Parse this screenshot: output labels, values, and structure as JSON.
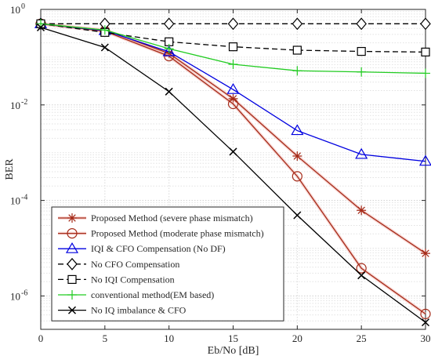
{
  "chart_data": {
    "type": "line",
    "title": "",
    "xlabel": "Eb/No [dB]",
    "ylabel": "BER",
    "x": [
      0,
      5,
      10,
      15,
      20,
      25,
      30
    ],
    "xlim": [
      0,
      30
    ],
    "ylim": [
      2e-07,
      1
    ],
    "yscale": "log",
    "x_ticks": [
      0,
      5,
      10,
      15,
      20,
      25,
      30
    ],
    "x_tick_labels": [
      "0",
      "5",
      "10",
      "15",
      "20",
      "25",
      "30"
    ],
    "y_ticks": [
      1e-06,
      0.0001,
      0.01,
      1
    ],
    "y_tick_labels": [
      {
        "base": "10",
        "exp": "-6"
      },
      {
        "base": "10",
        "exp": "-4"
      },
      {
        "base": "10",
        "exp": "-2"
      },
      {
        "base": "10",
        "exp": "0"
      }
    ],
    "grid": true,
    "legend_position": "bottom-left",
    "series": [
      {
        "name": "Proposed Method (severe phase mismatch)",
        "color": "#a52a18",
        "marker": "asterisk",
        "dash": "solid",
        "halo": true,
        "values": [
          0.5,
          0.37,
          0.12,
          0.0135,
          0.00085,
          6.2e-05,
          7.8e-06
        ]
      },
      {
        "name": "Proposed Method (moderate phase mismatch)",
        "color": "#a52a18",
        "marker": "circle",
        "dash": "solid",
        "halo": true,
        "values": [
          0.5,
          0.35,
          0.105,
          0.0105,
          0.00032,
          3.8e-06,
          4.2e-07
        ]
      },
      {
        "name": "IQI & CFO Compensation (No DF)",
        "color": "#0000e0",
        "marker": "triangle",
        "dash": "solid",
        "halo": false,
        "values": [
          0.5,
          0.36,
          0.13,
          0.021,
          0.0029,
          0.00092,
          0.00066
        ]
      },
      {
        "name": "No CFO Compensation",
        "color": "#000000",
        "marker": "diamond",
        "dash": "dashed",
        "halo": false,
        "values": [
          0.5,
          0.5,
          0.5,
          0.5,
          0.5,
          0.5,
          0.5
        ]
      },
      {
        "name": "No IQI Compensation",
        "color": "#000000",
        "marker": "square",
        "dash": "dashed",
        "halo": false,
        "values": [
          0.5,
          0.33,
          0.21,
          0.165,
          0.14,
          0.132,
          0.128
        ]
      },
      {
        "name": "conventional method(EM based)",
        "color": "#22cc22",
        "marker": "plus",
        "dash": "solid",
        "halo": false,
        "values": [
          0.5,
          0.37,
          0.15,
          0.071,
          0.052,
          0.049,
          0.046
        ]
      },
      {
        "name": "No IQ imbalance & CFO",
        "color": "#000000",
        "marker": "x",
        "dash": "solid",
        "halo": false,
        "values": [
          0.42,
          0.16,
          0.019,
          0.00105,
          4.9e-05,
          2.7e-06,
          2.8e-07
        ]
      }
    ]
  }
}
